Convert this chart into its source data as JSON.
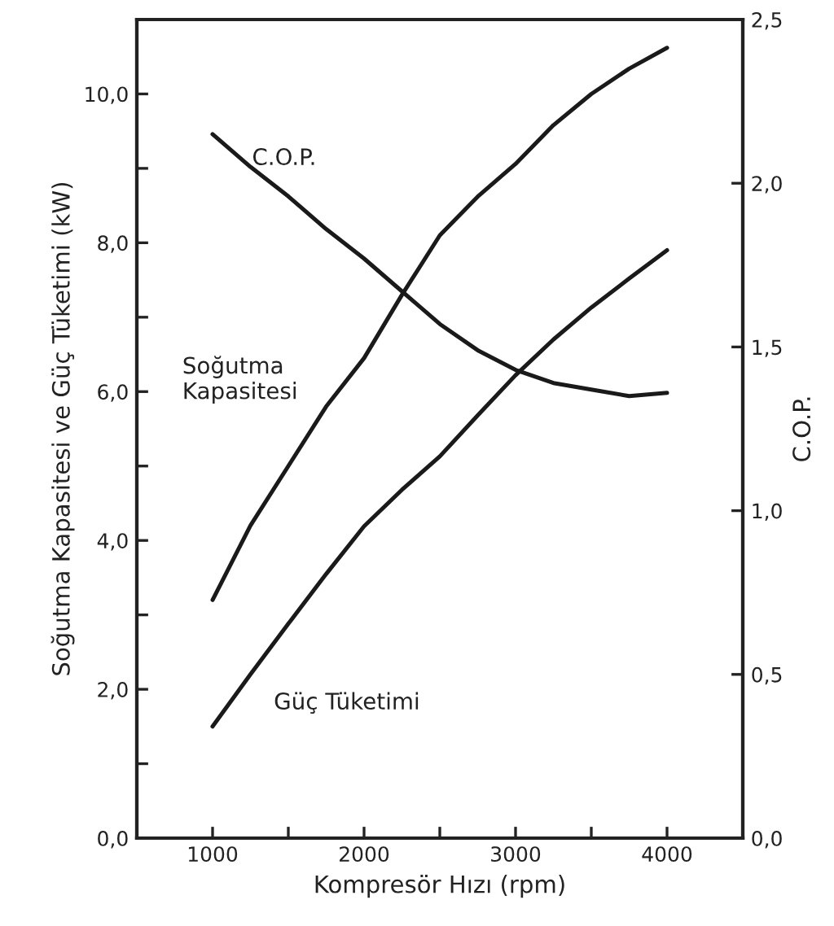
{
  "chart_data": {
    "type": "line",
    "xlabel": "Kompresör Hızı (rpm)",
    "ylabel": "Soğutma Kapasitesi ve Güç Tüketimi (kW)",
    "y2label": "C.O.P.",
    "x": [
      1000,
      1250,
      1500,
      1750,
      2000,
      2250,
      2500,
      2750,
      3000,
      3250,
      3500,
      3750,
      4000
    ],
    "series": [
      {
        "name": "Soğutma\nKapasitesi",
        "color": "#1a1a1a",
        "values": [
          3.2,
          4.2,
          5.0,
          5.8,
          6.45,
          7.3,
          8.1,
          8.62,
          9.06,
          9.58,
          10.0,
          10.34,
          10.62
        ]
      },
      {
        "name": "Güç Tüketimi",
        "color": "#1a1a1a",
        "values": [
          1.5,
          2.2,
          2.88,
          3.55,
          4.19,
          4.68,
          5.13,
          5.68,
          6.22,
          6.7,
          7.13,
          7.52,
          7.9
        ]
      },
      {
        "name": "C.O.P.",
        "color": "#1a1a1a",
        "axis": "y2",
        "values": [
          2.15,
          2.05,
          1.96,
          1.86,
          1.77,
          1.67,
          1.57,
          1.49,
          1.43,
          1.39,
          1.37,
          1.35,
          1.36
        ]
      }
    ],
    "xlim": [
      500,
      4500
    ],
    "xticks": [
      {
        "value": 500,
        "label": null
      },
      1000,
      {
        "value": 1500,
        "label": null
      },
      2000,
      {
        "value": 2500,
        "label": null
      },
      3000,
      {
        "value": 3500,
        "label": null
      },
      4000
    ],
    "ylim": [
      0,
      11
    ],
    "yticks": [
      {
        "value": 0,
        "label": "0,0"
      },
      {
        "value": 1,
        "label": null
      },
      {
        "value": 2,
        "label": "2,0"
      },
      {
        "value": 3,
        "label": null
      },
      {
        "value": 4,
        "label": "4,0"
      },
      {
        "value": 5,
        "label": null
      },
      {
        "value": 6,
        "label": "6,0"
      },
      {
        "value": 7,
        "label": null
      },
      {
        "value": 8,
        "label": "8,0"
      },
      {
        "value": 9,
        "label": null
      },
      {
        "value": 10,
        "label": "10,0"
      }
    ],
    "y2lim": [
      0,
      2.5
    ],
    "y2ticks": [
      {
        "value": 0,
        "label": "0,0"
      },
      {
        "value": 0.5,
        "label": "0,5"
      },
      {
        "value": 1,
        "label": "1,0"
      },
      {
        "value": 1.5,
        "label": "1,5"
      },
      {
        "value": 2,
        "label": "2,0"
      },
      {
        "value": 2.5,
        "label": "2,5"
      }
    ],
    "grid": false,
    "legend": false,
    "marker": "none",
    "line_style": "solid"
  }
}
